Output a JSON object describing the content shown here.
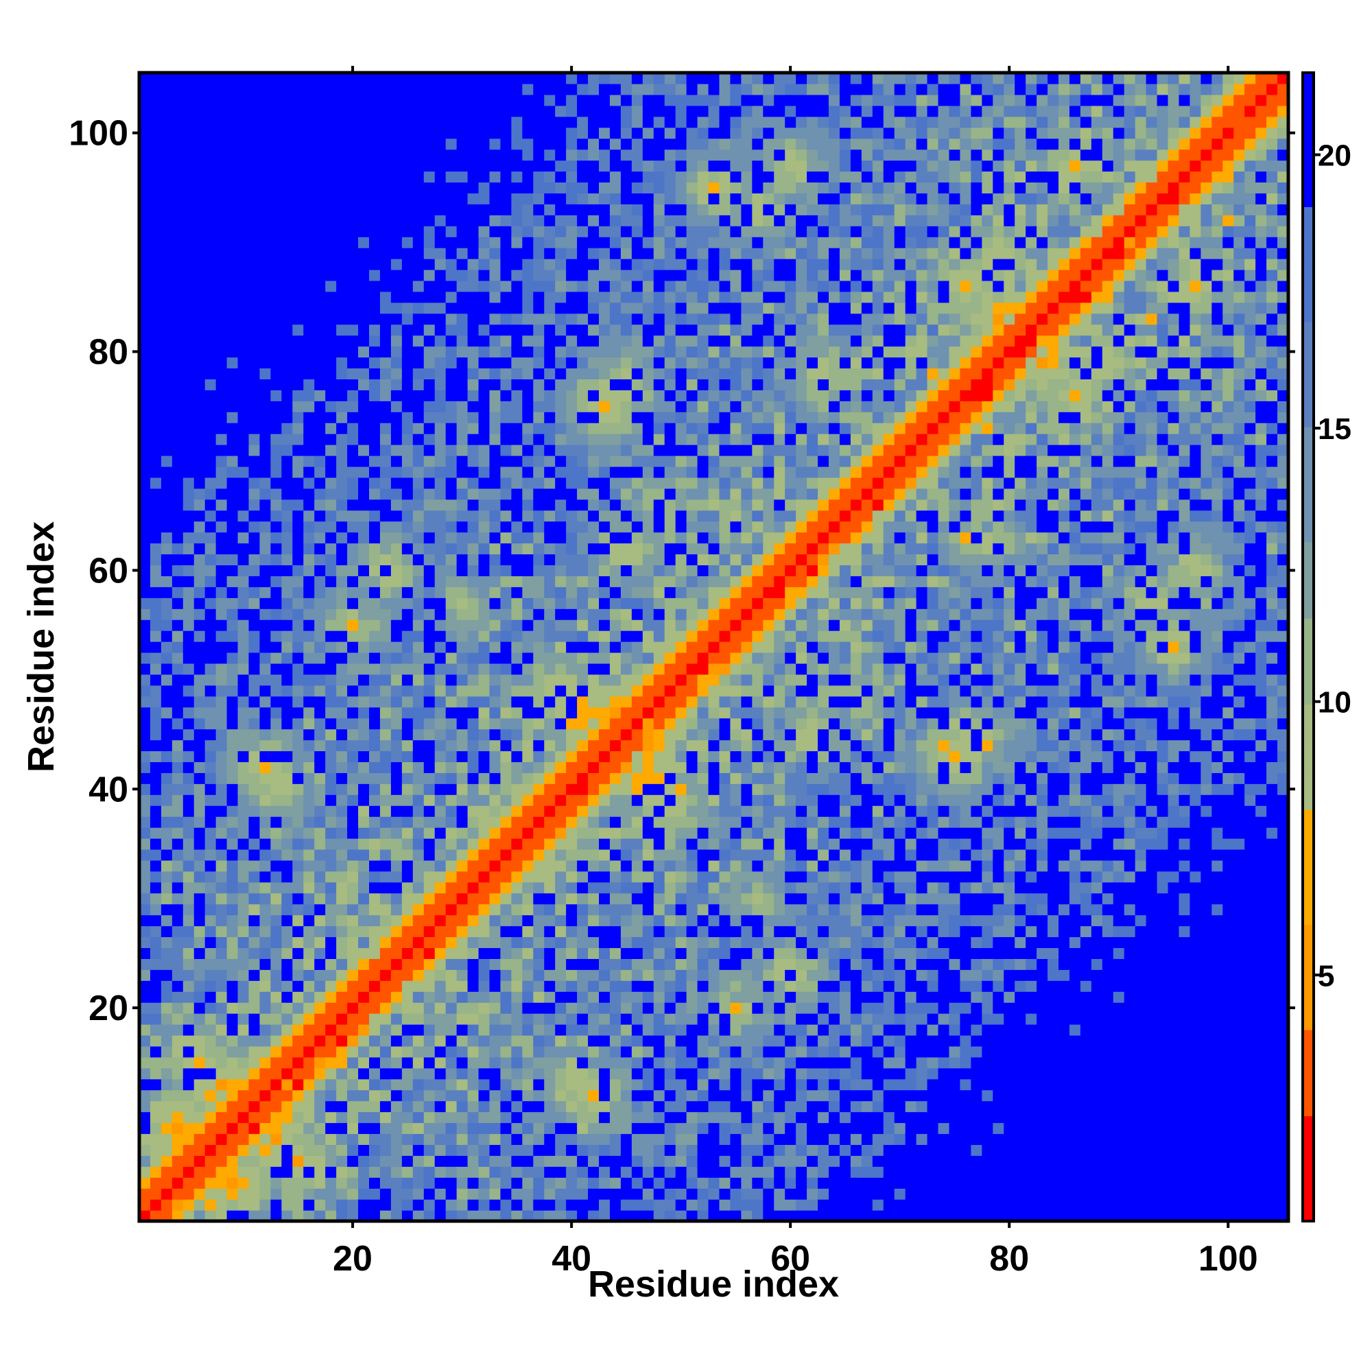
{
  "chart_data": {
    "type": "heatmap",
    "title": "",
    "xlabel": "Residue index",
    "ylabel": "Residue index",
    "n_residues": 105,
    "xlim": [
      1,
      105
    ],
    "ylim": [
      1,
      105
    ],
    "x_ticks": [
      20,
      40,
      60,
      80,
      100
    ],
    "y_ticks": [
      20,
      40,
      60,
      80,
      100
    ],
    "x_tick_labels": [
      "20",
      "40",
      "60",
      "80",
      "100"
    ],
    "y_tick_labels": [
      "20",
      "40",
      "60",
      "80",
      "100"
    ],
    "colorbar": {
      "range": [
        0.5,
        21.5
      ],
      "ticks": [
        5,
        10,
        15,
        20
      ],
      "tick_labels": [
        "5",
        "10",
        "15",
        "20"
      ],
      "placement": "right"
    },
    "color_scale": [
      {
        "max": 2.5,
        "color": "#ff0000"
      },
      {
        "max": 4.0,
        "color": "#ff5500"
      },
      {
        "max": 6.0,
        "color": "#ff9900"
      },
      {
        "max": 8.0,
        "color": "#ffaa00"
      },
      {
        "max": 10.0,
        "color": "#a8bb80"
      },
      {
        "max": 11.5,
        "color": "#98b488"
      },
      {
        "max": 13.0,
        "color": "#7f9fa0"
      },
      {
        "max": 15.0,
        "color": "#6e92b0"
      },
      {
        "max": 17.0,
        "color": "#5a80c0"
      },
      {
        "max": 19.0,
        "color": "#4d75c8"
      },
      {
        "max": 99,
        "color": "#0000ff"
      }
    ],
    "saturation_color": "#0000ff",
    "contact_matrix_note": "",
    "structural_contacts": [
      {
        "i": 8,
        "j": 13,
        "dist": 5
      },
      {
        "i": 6,
        "j": 15,
        "dist": 6
      },
      {
        "i": 12,
        "j": 42,
        "dist": 6
      },
      {
        "i": 13,
        "j": 40,
        "dist": 7
      },
      {
        "i": 41,
        "j": 47,
        "dist": 5
      },
      {
        "i": 39,
        "j": 49,
        "dist": 6
      },
      {
        "i": 44,
        "j": 47,
        "dist": 5
      },
      {
        "i": 79,
        "j": 83,
        "dist": 5
      },
      {
        "i": 76,
        "j": 86,
        "dist": 6
      },
      {
        "i": 79,
        "j": 89,
        "dist": 7
      },
      {
        "i": 75,
        "j": 43,
        "dist": 6
      },
      {
        "i": 77,
        "j": 45,
        "dist": 7
      },
      {
        "i": 20,
        "j": 55,
        "dist": 7
      },
      {
        "i": 23,
        "j": 60,
        "dist": 7
      },
      {
        "i": 60,
        "j": 97,
        "dist": 7
      },
      {
        "i": 86,
        "j": 97,
        "dist": 6
      },
      {
        "i": 53,
        "j": 95,
        "dist": 7
      },
      {
        "i": 57,
        "j": 93,
        "dist": 7
      },
      {
        "i": 63,
        "j": 78,
        "dist": 7
      },
      {
        "i": 30,
        "j": 57,
        "dist": 8
      },
      {
        "i": 45,
        "j": 62,
        "dist": 7
      },
      {
        "i": 48,
        "j": 66,
        "dist": 8
      },
      {
        "i": 9,
        "j": 4,
        "dist": 5
      }
    ]
  }
}
